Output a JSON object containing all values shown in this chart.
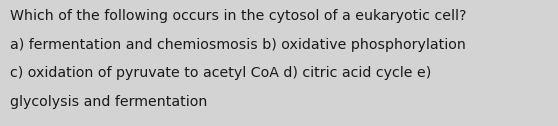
{
  "background_color": "#d3d3d3",
  "text_color": "#1a1a1a",
  "line1": "Which of the following occurs in the cytosol of a eukaryotic cell?",
  "line2": "a) fermentation and chemiosmosis b) oxidative phosphorylation",
  "line3": "c) oxidation of pyruvate to acetyl CoA d) citric acid cycle e)",
  "line4": "glycolysis and fermentation",
  "font_size": 10.2,
  "fig_width": 5.58,
  "fig_height": 1.26,
  "dpi": 100
}
